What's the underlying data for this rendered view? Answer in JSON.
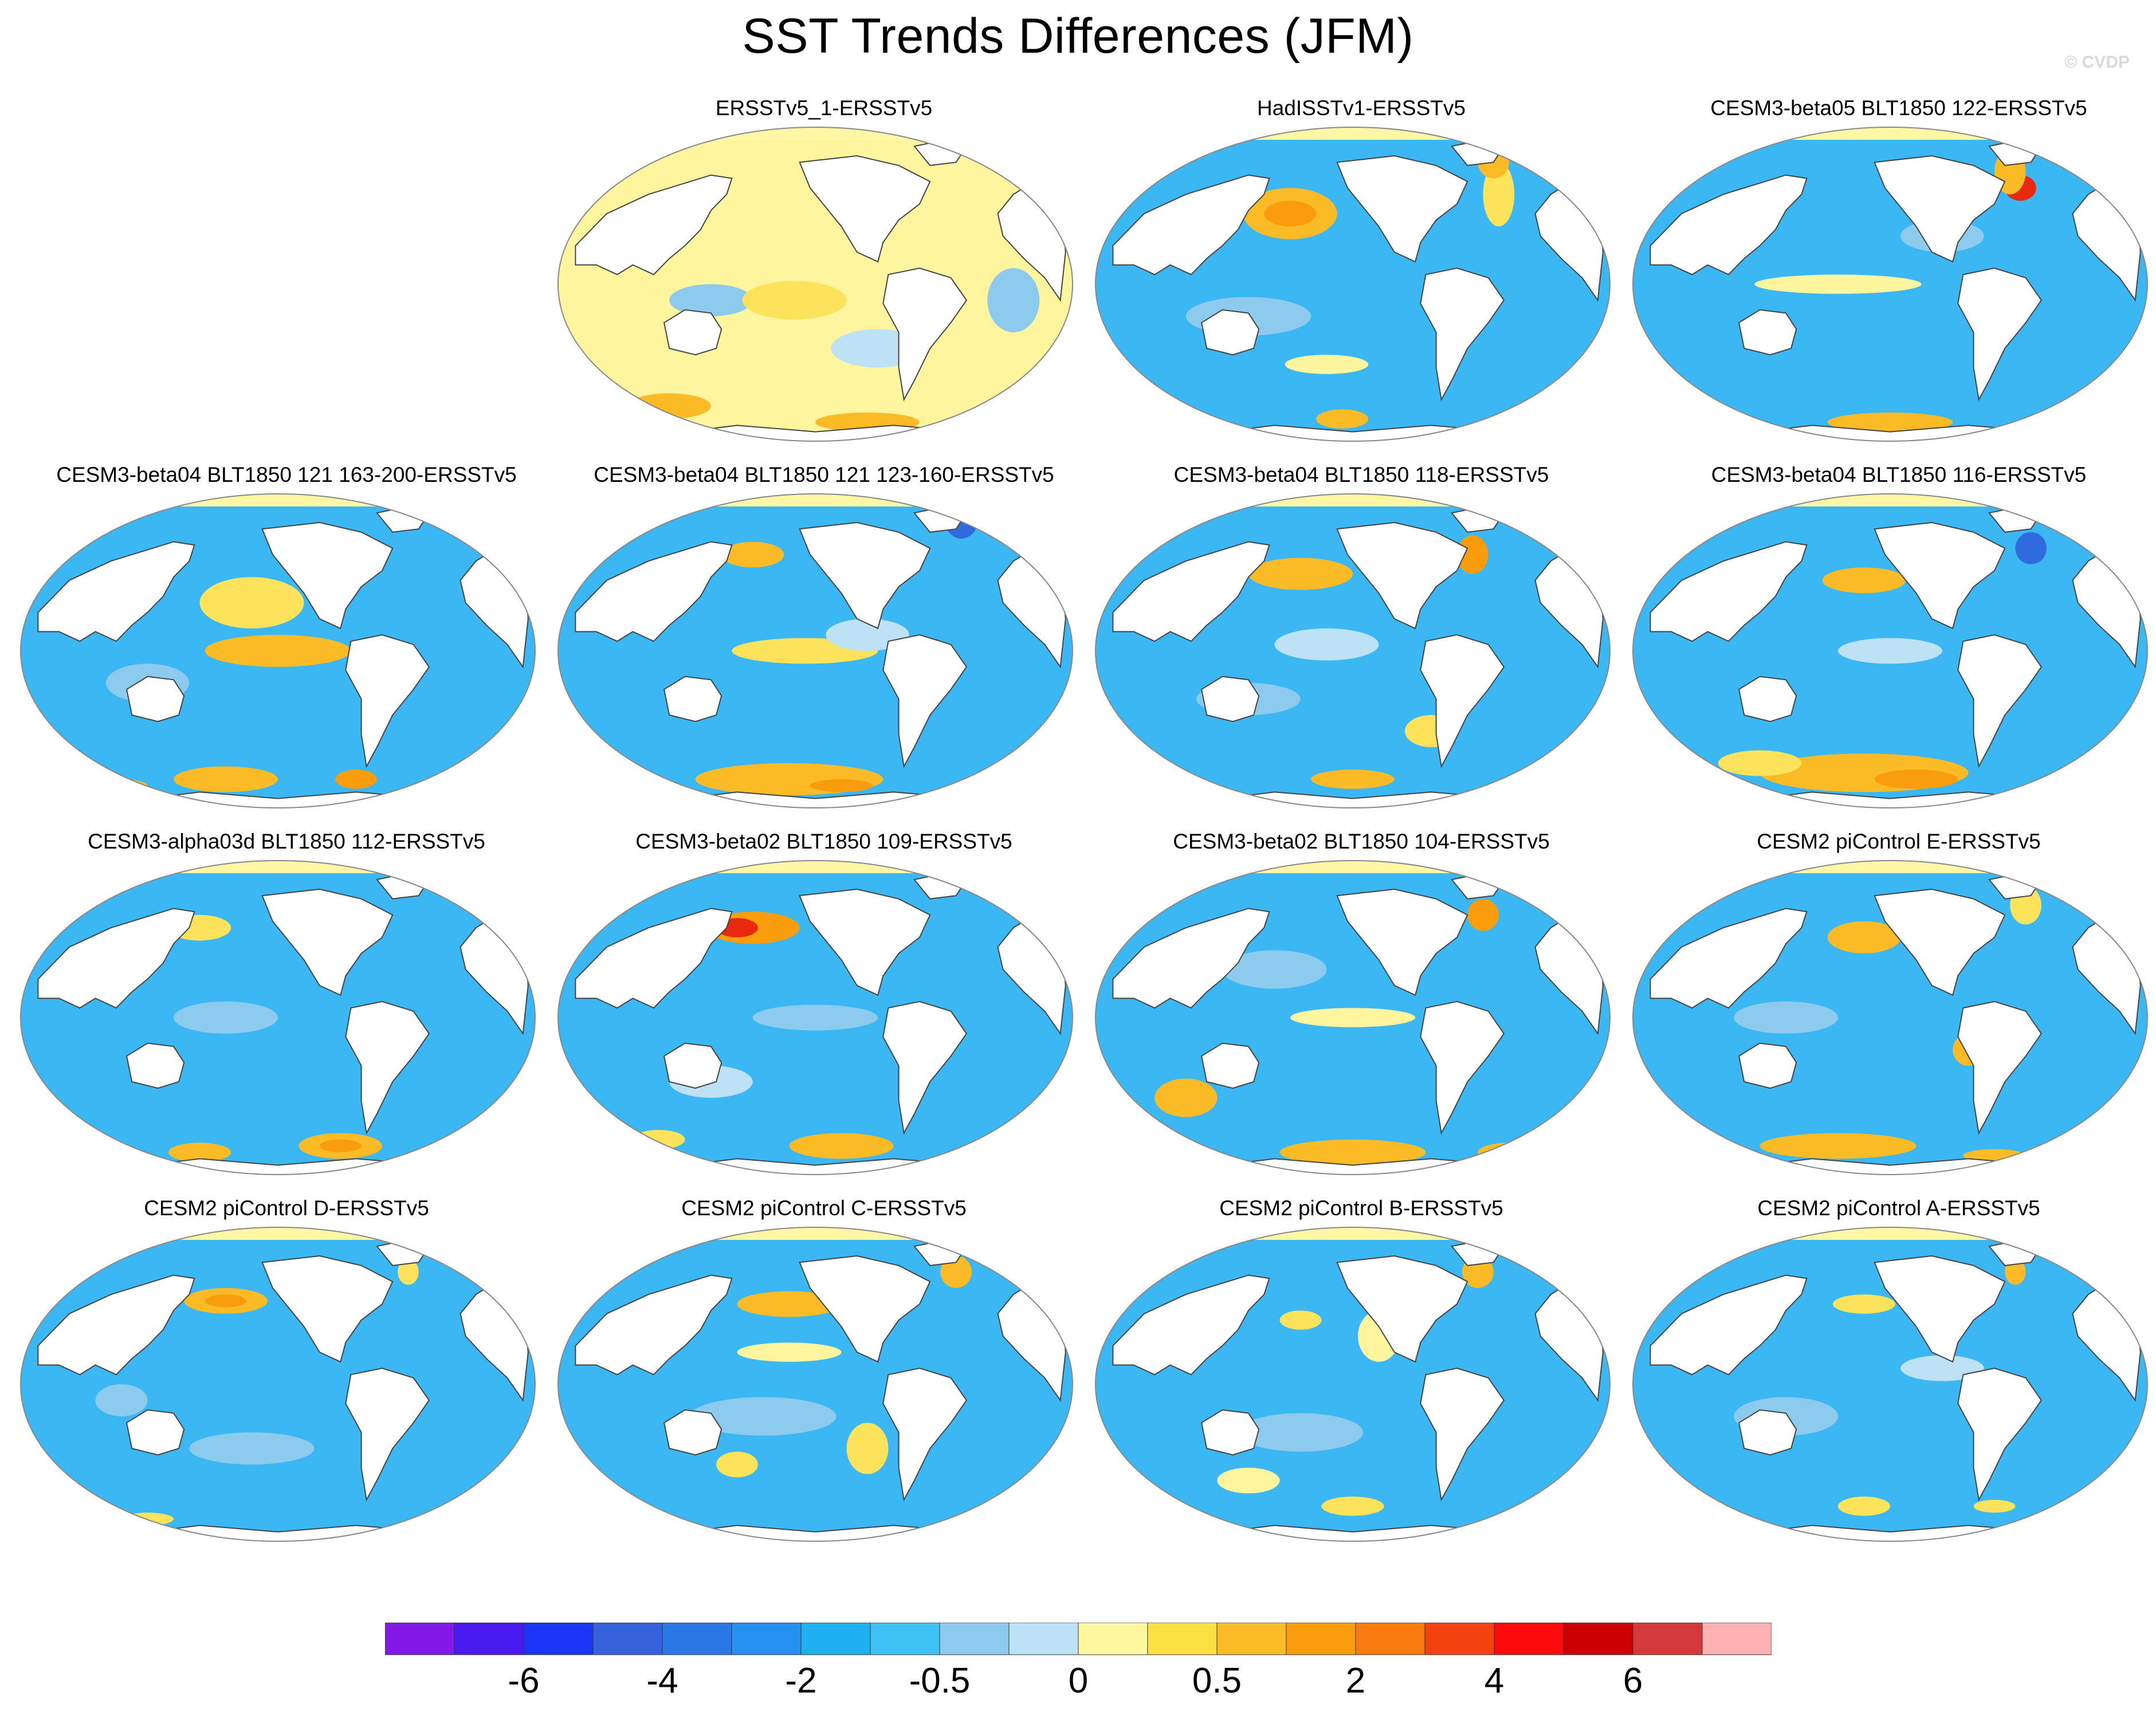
{
  "title": "SST Trends Differences (JFM)",
  "watermark": "© CVDP",
  "palette": {
    "land": "#ffffff",
    "ice_cap": "#fff7a6",
    "ocean_blue": "#3bb7f3",
    "light_blue": "#8ccbee",
    "pale_blue": "#bde2f6",
    "pale_yellow": "#fff59e",
    "yellow": "#fde35c",
    "orange_yellow": "#fbbb27",
    "orange": "#fa9d0c",
    "dark_orange": "#f97b0f",
    "red": "#e8290f",
    "deep_blue": "#2f6bdf",
    "coast": "#444444",
    "outline": "#888888"
  },
  "panels": [
    {
      "title": "ERSSTv5_1-ERSSTv5",
      "base": "pale_yellow",
      "patches": [
        [
          "light_blue",
          0.3,
          0.55,
          0.08,
          0.05
        ],
        [
          "pale_blue",
          0.62,
          0.7,
          0.09,
          0.06
        ],
        [
          "light_blue",
          0.88,
          0.55,
          0.05,
          0.1
        ],
        [
          "orange_yellow",
          0.22,
          0.88,
          0.08,
          0.04
        ],
        [
          "orange_yellow",
          0.6,
          0.93,
          0.1,
          0.03
        ],
        [
          "yellow",
          0.46,
          0.55,
          0.1,
          0.06
        ]
      ]
    },
    {
      "title": "HadISSTv1-ERSSTv5",
      "base": "ocean_blue",
      "patches": [
        [
          "orange_yellow",
          0.38,
          0.28,
          0.09,
          0.08
        ],
        [
          "orange",
          0.38,
          0.28,
          0.05,
          0.04
        ],
        [
          "yellow",
          0.78,
          0.22,
          0.03,
          0.1
        ],
        [
          "orange_yellow",
          0.77,
          0.12,
          0.03,
          0.05
        ],
        [
          "light_blue",
          0.3,
          0.6,
          0.12,
          0.06
        ],
        [
          "pale_yellow",
          0.45,
          0.75,
          0.08,
          0.03
        ],
        [
          "orange_yellow",
          0.48,
          0.92,
          0.05,
          0.03
        ]
      ]
    },
    {
      "title": "CESM3-beta05 BLT1850 122-ERSSTv5",
      "base": "ocean_blue",
      "patches": [
        [
          "red",
          0.75,
          0.2,
          0.03,
          0.04
        ],
        [
          "orange_yellow",
          0.73,
          0.15,
          0.03,
          0.07
        ],
        [
          "pale_yellow",
          0.4,
          0.5,
          0.16,
          0.03
        ],
        [
          "light_blue",
          0.6,
          0.35,
          0.08,
          0.05
        ],
        [
          "orange_yellow",
          0.5,
          0.93,
          0.12,
          0.03
        ],
        [
          "yellow",
          0.8,
          0.95,
          0.05,
          0.02
        ]
      ]
    },
    {
      "title": "CESM3-beta04 BLT1850 121 163-200-ERSSTv5",
      "base": "ocean_blue",
      "patches": [
        [
          "orange_yellow",
          0.5,
          0.5,
          0.14,
          0.05
        ],
        [
          "yellow",
          0.45,
          0.35,
          0.1,
          0.08
        ],
        [
          "orange_yellow",
          0.4,
          0.9,
          0.1,
          0.04
        ],
        [
          "orange",
          0.65,
          0.9,
          0.04,
          0.03
        ],
        [
          "light_blue",
          0.25,
          0.6,
          0.08,
          0.06
        ],
        [
          "orange_yellow",
          0.2,
          0.92,
          0.05,
          0.02
        ]
      ]
    },
    {
      "title": "CESM3-beta04 BLT1850 121 123-160-ERSSTv5",
      "base": "ocean_blue",
      "patches": [
        [
          "orange_yellow",
          0.45,
          0.9,
          0.18,
          0.05
        ],
        [
          "orange",
          0.55,
          0.92,
          0.06,
          0.02
        ],
        [
          "yellow",
          0.48,
          0.5,
          0.14,
          0.04
        ],
        [
          "orange_yellow",
          0.38,
          0.2,
          0.06,
          0.04
        ],
        [
          "deep_blue",
          0.78,
          0.1,
          0.03,
          0.05
        ],
        [
          "pale_blue",
          0.6,
          0.45,
          0.08,
          0.05
        ]
      ]
    },
    {
      "title": "CESM3-beta04 BLT1850 118-ERSSTv5",
      "base": "ocean_blue",
      "patches": [
        [
          "orange_yellow",
          0.4,
          0.26,
          0.1,
          0.05
        ],
        [
          "orange",
          0.73,
          0.2,
          0.03,
          0.06
        ],
        [
          "pale_blue",
          0.45,
          0.48,
          0.1,
          0.05
        ],
        [
          "yellow",
          0.65,
          0.75,
          0.05,
          0.05
        ],
        [
          "orange_yellow",
          0.5,
          0.9,
          0.08,
          0.03
        ],
        [
          "light_blue",
          0.3,
          0.65,
          0.1,
          0.05
        ]
      ]
    },
    {
      "title": "CESM3-beta04 BLT1850 116-ERSSTv5",
      "base": "ocean_blue",
      "patches": [
        [
          "orange_yellow",
          0.45,
          0.88,
          0.2,
          0.06
        ],
        [
          "orange",
          0.55,
          0.9,
          0.08,
          0.03
        ],
        [
          "orange_yellow",
          0.45,
          0.28,
          0.08,
          0.04
        ],
        [
          "yellow",
          0.25,
          0.85,
          0.08,
          0.04
        ],
        [
          "deep_blue",
          0.77,
          0.18,
          0.03,
          0.05
        ],
        [
          "pale_blue",
          0.5,
          0.5,
          0.1,
          0.04
        ]
      ]
    },
    {
      "title": "CESM3-alpha03d BLT1850 112-ERSSTv5",
      "base": "ocean_blue",
      "patches": [
        [
          "orange_yellow",
          0.62,
          0.9,
          0.08,
          0.04
        ],
        [
          "orange",
          0.62,
          0.9,
          0.04,
          0.02
        ],
        [
          "yellow",
          0.35,
          0.22,
          0.06,
          0.04
        ],
        [
          "orange_yellow",
          0.35,
          0.92,
          0.06,
          0.03
        ],
        [
          "light_blue",
          0.4,
          0.5,
          0.1,
          0.05
        ],
        [
          "yellow",
          0.7,
          0.6,
          0.03,
          0.04
        ]
      ]
    },
    {
      "title": "CESM3-beta02 BLT1850 109-ERSSTv5",
      "base": "ocean_blue",
      "patches": [
        [
          "orange",
          0.38,
          0.22,
          0.09,
          0.05
        ],
        [
          "red",
          0.35,
          0.22,
          0.04,
          0.03
        ],
        [
          "orange_yellow",
          0.55,
          0.9,
          0.1,
          0.04
        ],
        [
          "yellow",
          0.2,
          0.88,
          0.05,
          0.03
        ],
        [
          "light_blue",
          0.5,
          0.5,
          0.12,
          0.04
        ],
        [
          "pale_blue",
          0.3,
          0.7,
          0.08,
          0.05
        ]
      ]
    },
    {
      "title": "CESM3-beta02 BLT1850 104-ERSSTv5",
      "base": "ocean_blue",
      "patches": [
        [
          "orange",
          0.75,
          0.18,
          0.03,
          0.05
        ],
        [
          "orange_yellow",
          0.18,
          0.75,
          0.06,
          0.06
        ],
        [
          "orange_yellow",
          0.5,
          0.92,
          0.14,
          0.04
        ],
        [
          "pale_yellow",
          0.5,
          0.5,
          0.12,
          0.03
        ],
        [
          "light_blue",
          0.35,
          0.35,
          0.1,
          0.06
        ],
        [
          "orange_yellow",
          0.8,
          0.92,
          0.06,
          0.03
        ]
      ]
    },
    {
      "title": "CESM2 piControl E-ERSSTv5",
      "base": "ocean_blue",
      "patches": [
        [
          "orange_yellow",
          0.45,
          0.25,
          0.07,
          0.05
        ],
        [
          "orange_yellow",
          0.4,
          0.9,
          0.15,
          0.04
        ],
        [
          "yellow",
          0.76,
          0.15,
          0.03,
          0.06
        ],
        [
          "orange_yellow",
          0.65,
          0.6,
          0.03,
          0.05
        ],
        [
          "light_blue",
          0.3,
          0.5,
          0.1,
          0.05
        ],
        [
          "orange_yellow",
          0.7,
          0.93,
          0.06,
          0.02
        ]
      ]
    },
    {
      "title": "CESM2 piControl D-ERSSTv5",
      "base": "ocean_blue",
      "patches": [
        [
          "orange_yellow",
          0.4,
          0.24,
          0.08,
          0.04
        ],
        [
          "orange",
          0.4,
          0.24,
          0.04,
          0.02
        ],
        [
          "yellow",
          0.75,
          0.15,
          0.02,
          0.04
        ],
        [
          "light_blue",
          0.45,
          0.7,
          0.12,
          0.05
        ],
        [
          "yellow",
          0.25,
          0.92,
          0.05,
          0.02
        ],
        [
          "light_blue",
          0.2,
          0.55,
          0.05,
          0.05
        ]
      ]
    },
    {
      "title": "CESM2 piControl C-ERSSTv5",
      "base": "ocean_blue",
      "patches": [
        [
          "orange_yellow",
          0.45,
          0.25,
          0.1,
          0.04
        ],
        [
          "orange_yellow",
          0.77,
          0.15,
          0.03,
          0.05
        ],
        [
          "yellow",
          0.6,
          0.7,
          0.04,
          0.08
        ],
        [
          "light_blue",
          0.4,
          0.6,
          0.14,
          0.06
        ],
        [
          "pale_yellow",
          0.45,
          0.4,
          0.1,
          0.03
        ],
        [
          "yellow",
          0.35,
          0.75,
          0.04,
          0.04
        ]
      ]
    },
    {
      "title": "CESM2 piControl B-ERSSTv5",
      "base": "ocean_blue",
      "patches": [
        [
          "pale_yellow",
          0.55,
          0.35,
          0.04,
          0.08
        ],
        [
          "orange_yellow",
          0.74,
          0.15,
          0.03,
          0.05
        ],
        [
          "yellow",
          0.4,
          0.3,
          0.04,
          0.03
        ],
        [
          "light_blue",
          0.4,
          0.65,
          0.12,
          0.06
        ],
        [
          "yellow",
          0.5,
          0.88,
          0.06,
          0.03
        ],
        [
          "pale_yellow",
          0.3,
          0.8,
          0.06,
          0.04
        ]
      ]
    },
    {
      "title": "CESM2 piControl A-ERSSTv5",
      "base": "ocean_blue",
      "patches": [
        [
          "orange_yellow",
          0.74,
          0.15,
          0.02,
          0.04
        ],
        [
          "yellow",
          0.45,
          0.25,
          0.06,
          0.03
        ],
        [
          "yellow",
          0.45,
          0.88,
          0.05,
          0.03
        ],
        [
          "light_blue",
          0.3,
          0.6,
          0.1,
          0.06
        ],
        [
          "pale_blue",
          0.6,
          0.45,
          0.08,
          0.04
        ],
        [
          "yellow",
          0.7,
          0.88,
          0.04,
          0.02
        ]
      ]
    }
  ],
  "colorbar": {
    "colors": [
      "#8219e6",
      "#4a1bf0",
      "#1c34f5",
      "#3561dd",
      "#2a78e8",
      "#2791f2",
      "#1fb0f2",
      "#3fc2f5",
      "#8ccbee",
      "#bde2f6",
      "#fff79e",
      "#fde042",
      "#fbbb27",
      "#fa9d0c",
      "#f97b0f",
      "#f4420f",
      "#fb0b0b",
      "#cc0000",
      "#d53a3a",
      "#feb2b4"
    ],
    "labels": [
      {
        "text": "-6",
        "boundary": 2
      },
      {
        "text": "-4",
        "boundary": 4
      },
      {
        "text": "-2",
        "boundary": 6
      },
      {
        "text": "-0.5",
        "boundary": 8
      },
      {
        "text": "0",
        "boundary": 10
      },
      {
        "text": "0.5",
        "boundary": 12
      },
      {
        "text": "2",
        "boundary": 14
      },
      {
        "text": "4",
        "boundary": 16
      },
      {
        "text": "6",
        "boundary": 18
      }
    ]
  }
}
